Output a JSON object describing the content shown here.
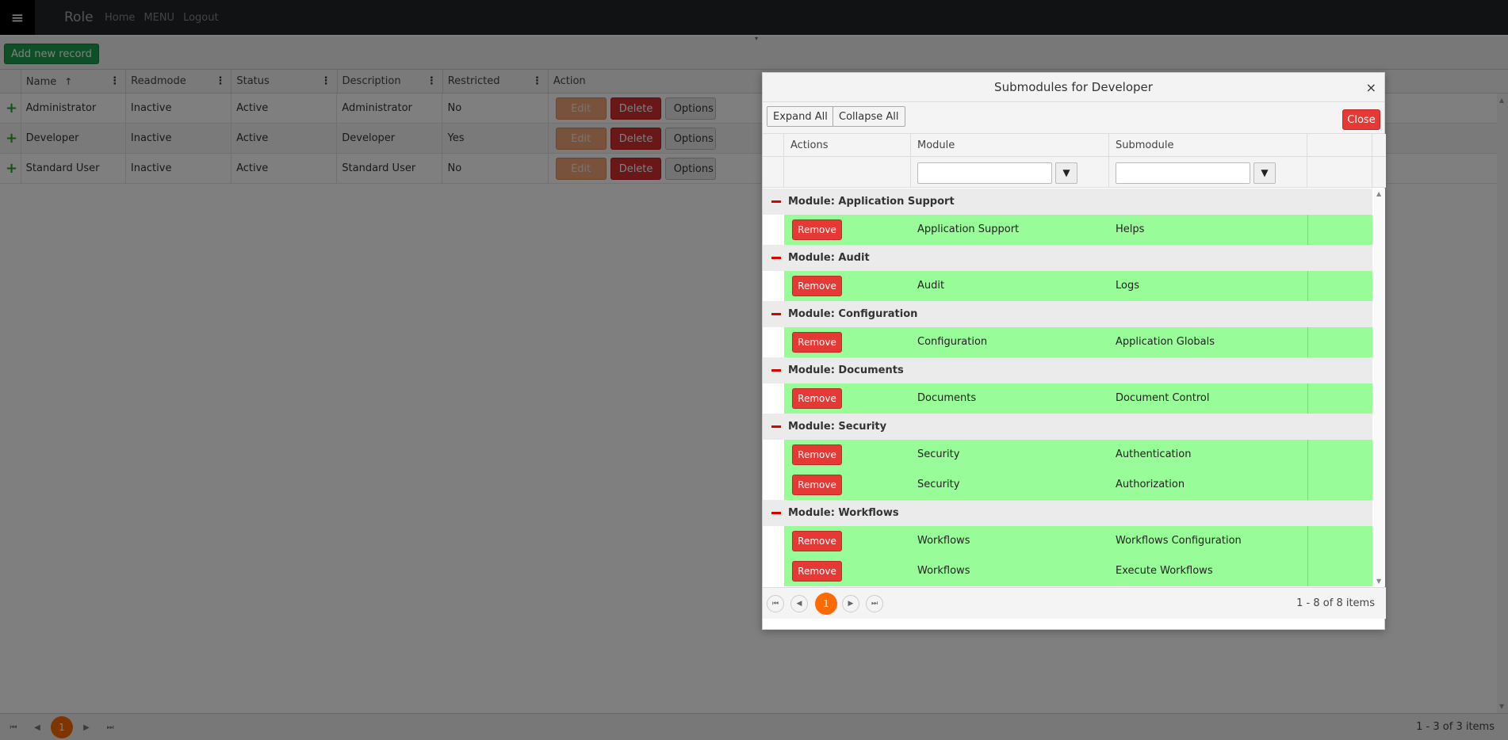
{
  "nav": {
    "menu_icon": "≡",
    "brand": "Role",
    "links": [
      "Home",
      "MENU",
      "Logout"
    ]
  },
  "toolbar": {
    "add_label": "Add new record"
  },
  "grid": {
    "columns": [
      "Name",
      "Readmode",
      "Status",
      "Description",
      "Restricted",
      "Action"
    ],
    "sort_icon": "↑",
    "rows": [
      {
        "name": "Administrator",
        "readmode": "Inactive",
        "status": "Active",
        "description": "Administrator",
        "restricted": "No"
      },
      {
        "name": "Developer",
        "readmode": "Inactive",
        "status": "Active",
        "description": "Developer",
        "restricted": "Yes"
      },
      {
        "name": "Standard User",
        "readmode": "Inactive",
        "status": "Active",
        "description": "Standard User",
        "restricted": "No"
      }
    ],
    "edit_label": "Edit",
    "delete_label": "Delete",
    "options_label": "Options"
  },
  "pager": {
    "current_page": "1",
    "info": "1 - 3 of 3 items"
  },
  "modal": {
    "title": "Submodules for Developer",
    "close_x": "×",
    "expand_all": "Expand All",
    "collapse_all": "Collapse All",
    "close_label": "Close",
    "columns": [
      "Actions",
      "Module",
      "Submodule"
    ],
    "remove_label": "Remove",
    "groups": [
      {
        "header": "Module: Application Support",
        "rows": [
          {
            "module": "Application Support",
            "submodule": "Helps"
          }
        ]
      },
      {
        "header": "Module: Audit",
        "rows": [
          {
            "module": "Audit",
            "submodule": "Logs"
          }
        ]
      },
      {
        "header": "Module: Configuration",
        "rows": [
          {
            "module": "Configuration",
            "submodule": "Application Globals"
          }
        ]
      },
      {
        "header": "Module: Documents",
        "rows": [
          {
            "module": "Documents",
            "submodule": "Document Control"
          }
        ]
      },
      {
        "header": "Module: Security",
        "rows": [
          {
            "module": "Security",
            "submodule": "Authentication"
          },
          {
            "module": "Security",
            "submodule": "Authorization"
          }
        ]
      },
      {
        "header": "Module: Workflows",
        "rows": [
          {
            "module": "Workflows",
            "submodule": "Workflows Configuration"
          },
          {
            "module": "Workflows",
            "submodule": "Execute Workflows"
          }
        ]
      }
    ],
    "pager": {
      "current_page": "1",
      "info": "1 - 8 of 8 items"
    }
  },
  "colors": {
    "add_button": "#1e9e4f",
    "delete_button": "#d32f2f",
    "remove_button": "#e53935",
    "row_highlight": "#98fc98",
    "page_current": "#ff6a00"
  }
}
